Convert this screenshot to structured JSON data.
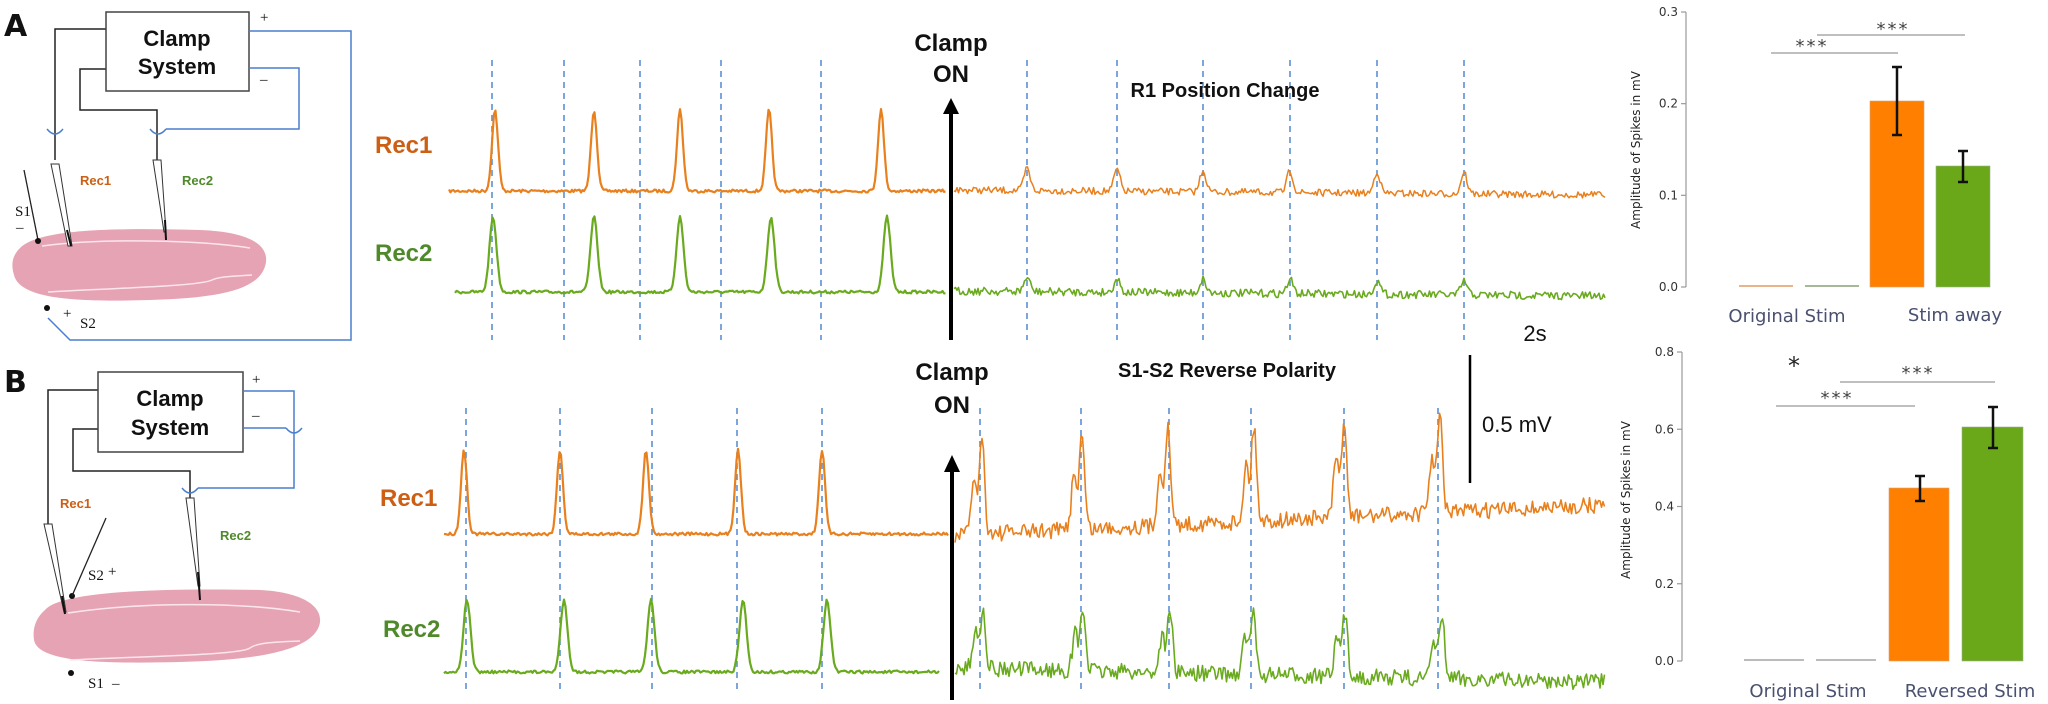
{
  "panels": {
    "A": {
      "letter": "A",
      "diagram": {
        "box_line1": "Clamp",
        "box_line2": "System",
        "plus": "+",
        "minus": "–",
        "rec1": "Rec1",
        "rec2": "Rec2",
        "s1_label": "S1",
        "s1_sign": "–",
        "s2_label": "S2",
        "s2_sign": "+"
      },
      "trace_labels": {
        "rec1": "Rec1",
        "rec2": "Rec2"
      },
      "clamp_line1": "Clamp",
      "clamp_line2": "ON",
      "condition_title": "R1 Position Change"
    },
    "B": {
      "letter": "B",
      "diagram": {
        "box_line1": "Clamp",
        "box_line2": "System",
        "plus": "+",
        "minus": "–",
        "rec1": "Rec1",
        "rec2": "Rec2",
        "s1_label": "S1",
        "s1_sign": "–",
        "s2_label": "S2",
        "s2_sign": "+"
      },
      "trace_labels": {
        "rec1": "Rec1",
        "rec2": "Rec2"
      },
      "clamp_line1": "Clamp",
      "clamp_line2": "ON",
      "condition_title": "S1-S2 Reverse Polarity"
    }
  },
  "scale_bar": {
    "time": "2s",
    "voltage": "0.5 mV"
  },
  "colors": {
    "rec1": "#e8801e",
    "rec2": "#6aaa1e",
    "rec1_label": "#cc5f14",
    "rec2_label": "#4f8a2a",
    "stim_marker": "#5b8fd6",
    "bar_orange": "#ff8000",
    "bar_green": "#6aa81a",
    "wire_blue": "#4a7fcf",
    "tissue": "#e6a3b4"
  },
  "chart_data": [
    {
      "type": "bar",
      "panel": "A",
      "title": "",
      "ylabel": "Amplitude of Spikes in mV",
      "xlabel": "",
      "ylim": [
        0,
        0.3
      ],
      "yticks": [
        "0.0",
        "0.1",
        "0.2",
        "0.3"
      ],
      "group_labels": [
        "Original Stim",
        "Stim away"
      ],
      "categories": [
        "Original Stim Rec1",
        "Original Stim Rec2",
        "Stim away Rec1",
        "Stim away Rec2"
      ],
      "series": [
        {
          "name": "Rec1",
          "color": "#ff8000",
          "values": [
            0.001,
            0.202
          ],
          "error": [
            0.0005,
            0.037
          ]
        },
        {
          "name": "Rec2",
          "color": "#6aa81a",
          "values": [
            0.001,
            0.13
          ],
          "error": [
            0.001,
            0.017
          ]
        }
      ],
      "values": [
        0.001,
        0.001,
        0.202,
        0.13
      ],
      "errors": [
        0.0005,
        0.001,
        0.037,
        0.017
      ],
      "significance": [
        {
          "label": "***",
          "from": "Original Stim Rec1",
          "to": "Stim away Rec1"
        },
        {
          "label": "***",
          "from": "Original Stim Rec2",
          "to": "Stim away Rec2"
        }
      ],
      "grid": false
    },
    {
      "type": "bar",
      "panel": "B",
      "title": "",
      "ylabel": "Amplitude of Spikes in mV",
      "xlabel": "",
      "ylim": [
        0,
        0.8
      ],
      "yticks": [
        "0.0",
        "0.2",
        "0.4",
        "0.6",
        "0.8"
      ],
      "group_labels": [
        "Original Stim",
        "Reversed Stim"
      ],
      "categories": [
        "Original Stim Rec1",
        "Original Stim Rec2",
        "Reversed Stim Rec1",
        "Reversed Stim Rec2"
      ],
      "series": [
        {
          "name": "Rec1",
          "color": "#ff8000",
          "values": [
            0.002,
            0.447
          ],
          "error": [
            0.001,
            0.033
          ]
        },
        {
          "name": "Rec2",
          "color": "#6aa81a",
          "values": [
            0.002,
            0.605
          ],
          "error": [
            0.001,
            0.053
          ]
        }
      ],
      "values": [
        0.002,
        0.002,
        0.447,
        0.605
      ],
      "errors": [
        0.001,
        0.001,
        0.033,
        0.053
      ],
      "significance": [
        {
          "label": "*",
          "note": "standalone marker above Original Stim"
        },
        {
          "label": "***",
          "from": "Original Stim Rec1",
          "to": "Reversed Stim Rec1"
        },
        {
          "label": "***",
          "from": "Original Stim Rec2",
          "to": "Reversed Stim Rec2"
        }
      ],
      "grid": false
    }
  ],
  "charts": {
    "A": {
      "ylabel": "Amplitude of Spikes in mV",
      "ticks": [
        "0.0",
        "0.1",
        "0.2",
        "0.3"
      ],
      "xcat1": "Original Stim",
      "xcat2": "Stim away",
      "sig1": "***",
      "sig2": "***"
    },
    "B": {
      "ylabel": "Amplitude of Spikes in mV",
      "ticks": [
        "0.0",
        "0.2",
        "0.4",
        "0.6",
        "0.8"
      ],
      "xcat1": "Original Stim",
      "xcat2": "Reversed Stim",
      "sig0": "*",
      "sig1": "***",
      "sig2": "***"
    }
  }
}
